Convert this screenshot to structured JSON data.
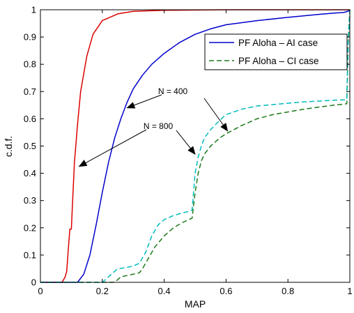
{
  "chart_data": {
    "type": "line",
    "xlabel": "MAP",
    "ylabel": "c.d.f.",
    "xlim": [
      0,
      1
    ],
    "ylim": [
      0,
      1
    ],
    "xticks": [
      0,
      0.2,
      0.4,
      0.6,
      0.8,
      1
    ],
    "xtick_labels": [
      "0",
      "0.2",
      "0.4",
      "0.6",
      "0.8",
      "1"
    ],
    "yticks": [
      0,
      0.1,
      0.2,
      0.3,
      0.4,
      0.5,
      0.6,
      0.7,
      0.8,
      0.9,
      1
    ],
    "ytick_labels": [
      "0",
      "0.1",
      "0.2",
      "0.3",
      "0.4",
      "0.5",
      "0.6",
      "0.7",
      "0.8",
      "0.9",
      "1"
    ],
    "grid": false,
    "legend_position": "top-right",
    "legend": [
      {
        "label": "PF Aloha – AI case",
        "style": "solid",
        "color": "#0000cc"
      },
      {
        "label": "PF Aloha – CI case",
        "style": "dashed",
        "color": "#1a7a1a"
      }
    ],
    "series": [
      {
        "color": "#dd0000",
        "style": "solid",
        "x": [
          0,
          0.07,
          0.08,
          0.085,
          0.09,
          0.095,
          0.1,
          0.103,
          0.11,
          0.12,
          0.13,
          0.15,
          0.17,
          0.2,
          0.25,
          0.3,
          0.4,
          0.5,
          0.6,
          1
        ],
        "y": [
          0,
          0,
          0.02,
          0.04,
          0.12,
          0.195,
          0.195,
          0.27,
          0.44,
          0.58,
          0.7,
          0.83,
          0.91,
          0.96,
          0.985,
          0.994,
          0.998,
          0.999,
          1,
          1
        ]
      },
      {
        "color": "#0000cc",
        "style": "solid",
        "x": [
          0,
          0.12,
          0.14,
          0.16,
          0.18,
          0.2,
          0.22,
          0.24,
          0.26,
          0.28,
          0.3,
          0.33,
          0.36,
          0.4,
          0.45,
          0.5,
          0.55,
          0.6,
          0.7,
          0.8,
          0.9,
          0.95,
          0.98,
          0.995,
          1
        ],
        "y": [
          0,
          0,
          0.03,
          0.1,
          0.21,
          0.33,
          0.44,
          0.53,
          0.6,
          0.66,
          0.71,
          0.76,
          0.8,
          0.84,
          0.88,
          0.91,
          0.93,
          0.945,
          0.96,
          0.972,
          0.983,
          0.988,
          0.99,
          0.995,
          1
        ]
      },
      {
        "color": "#1a7a1a",
        "style": "dashed",
        "x": [
          0,
          0.24,
          0.25,
          0.26,
          0.28,
          0.3,
          0.32,
          0.33,
          0.35,
          0.37,
          0.4,
          0.43,
          0.46,
          0.48,
          0.49,
          0.5,
          0.51,
          0.52,
          0.53,
          0.55,
          0.58,
          0.6,
          0.65,
          0.7,
          0.75,
          0.8,
          0.85,
          0.9,
          0.95,
          0.99,
          0.995,
          1
        ],
        "y": [
          0,
          0,
          0.01,
          0.02,
          0.025,
          0.03,
          0.035,
          0.05,
          0.09,
          0.13,
          0.17,
          0.2,
          0.22,
          0.23,
          0.235,
          0.33,
          0.4,
          0.445,
          0.47,
          0.5,
          0.53,
          0.545,
          0.575,
          0.6,
          0.615,
          0.625,
          0.635,
          0.643,
          0.65,
          0.655,
          0.88,
          1
        ]
      },
      {
        "color": "#00bbbb",
        "style": "dashed",
        "x": [
          0,
          0.2,
          0.25,
          0.255,
          0.28,
          0.3,
          0.32,
          0.34,
          0.36,
          0.38,
          0.4,
          0.43,
          0.46,
          0.48,
          0.49,
          0.5,
          0.51,
          0.52,
          0.53,
          0.55,
          0.58,
          0.6,
          0.65,
          0.7,
          0.75,
          0.8,
          0.85,
          0.9,
          0.95,
          0.99,
          0.995,
          1
        ],
        "y": [
          0,
          0,
          0.05,
          0.05,
          0.055,
          0.06,
          0.07,
          0.11,
          0.17,
          0.21,
          0.23,
          0.245,
          0.255,
          0.26,
          0.265,
          0.4,
          0.46,
          0.5,
          0.53,
          0.56,
          0.595,
          0.615,
          0.635,
          0.647,
          0.652,
          0.657,
          0.662,
          0.665,
          0.668,
          0.67,
          0.9,
          1
        ]
      }
    ],
    "annotations": [
      {
        "text": "N = 400",
        "points_to": [
          [
            0.28,
            0.64
          ],
          [
            0.605,
            0.555
          ]
        ]
      },
      {
        "text": "N = 800",
        "points_to": [
          [
            0.125,
            0.425
          ],
          [
            0.5,
            0.47
          ]
        ]
      }
    ]
  }
}
